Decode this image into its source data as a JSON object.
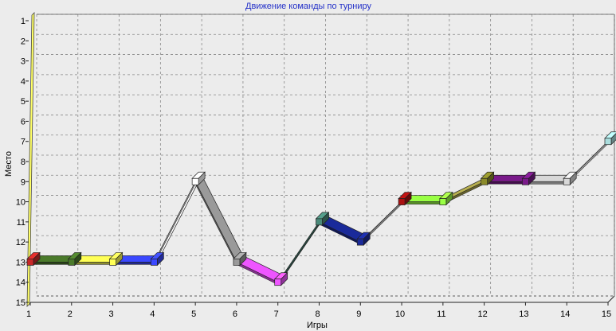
{
  "chart_data": {
    "type": "line",
    "title": "Движение команды по турниру",
    "xlabel": "Игры",
    "ylabel": "Место",
    "x": [
      1,
      2,
      3,
      4,
      5,
      6,
      7,
      8,
      9,
      10,
      11,
      12,
      13,
      14,
      15
    ],
    "x_tick_labels": [
      "1",
      "2",
      "3",
      "4",
      "5",
      "6",
      "7",
      "8",
      "9",
      "10",
      "11",
      "12",
      "13",
      "14",
      "15"
    ],
    "y_tick_labels": [
      "1",
      "2",
      "3",
      "4",
      "5",
      "6",
      "7",
      "8",
      "9",
      "10",
      "11",
      "12",
      "13",
      "14",
      "15"
    ],
    "ylim": [
      1,
      15
    ],
    "y_inverted": true,
    "grid": true,
    "series": [
      {
        "values": [
          13,
          13,
          13,
          13,
          9,
          13,
          14,
          11,
          12,
          10,
          10,
          9,
          9,
          9,
          7
        ]
      }
    ],
    "segment_colors": [
      "#4a7a2a",
      "#ffff55",
      "#3a48ff",
      "#ffffff",
      "#9a9a9a",
      "#ee55ff",
      "#4a8a7a",
      "#1a2a9a",
      "#d8d8d8",
      "#99ff44",
      "#b8b050",
      "#7a1a8a",
      "#d8d8d8",
      "#ffffff"
    ],
    "marker_colors": [
      "#c82828",
      "#4a7a2a",
      "#ffff55",
      "#3a48ff",
      "#ffffff",
      "#9a9a9a",
      "#ee55ff",
      "#4a8a7a",
      "#1a2a9a",
      "#aa1111",
      "#99ff44",
      "#8a8a2a",
      "#7a1a8a",
      "#d8d8d8",
      "#aadddd"
    ],
    "left_wall_color": "#ffff66"
  }
}
